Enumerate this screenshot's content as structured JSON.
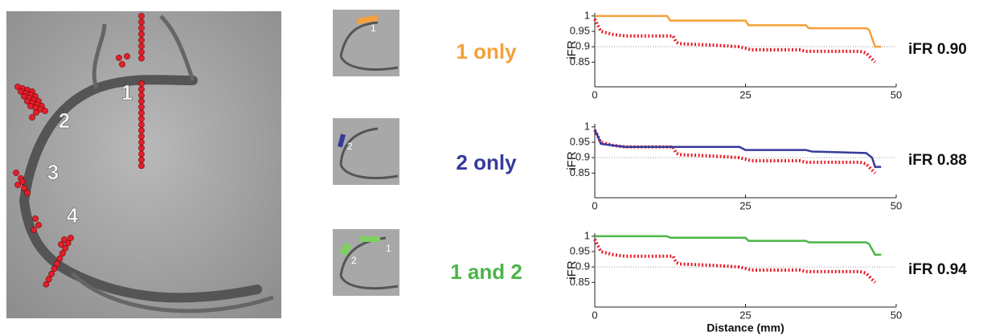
{
  "figure": {
    "main_labels": [
      "1",
      "2",
      "3",
      "4"
    ],
    "thumb_labels": [
      [
        "1"
      ],
      [
        "2"
      ],
      [
        "2",
        "1"
      ]
    ]
  },
  "chart_data": [
    {
      "type": "line",
      "title": "1 only",
      "title_color": "#f5a03a",
      "annotation": "iFR 0.90",
      "ylabel": "iFR",
      "xlim": [
        0,
        50
      ],
      "ylim": [
        0.77,
        1.01
      ],
      "xticks": [
        0,
        25,
        50
      ],
      "yticks": [
        0.85,
        0.9,
        0.95,
        1
      ],
      "reference_line": 0.9,
      "series": [
        {
          "color": "#f5a03a",
          "style": "solid",
          "x": [
            0,
            12,
            12.5,
            25,
            25.5,
            35,
            35.5,
            45,
            45.5,
            46.5,
            47.5
          ],
          "values": [
            1.0,
            1.0,
            0.985,
            0.985,
            0.97,
            0.97,
            0.96,
            0.96,
            0.955,
            0.9,
            0.9
          ]
        },
        {
          "color": "#e8202a",
          "style": "dotted",
          "x": [
            0,
            0.5,
            1,
            2,
            3,
            5,
            13,
            13.5,
            14,
            20,
            24,
            25,
            26,
            34,
            35,
            44,
            45,
            45.5,
            46,
            46.5
          ],
          "values": [
            0.99,
            0.97,
            0.95,
            0.945,
            0.94,
            0.935,
            0.935,
            0.915,
            0.91,
            0.905,
            0.9,
            0.895,
            0.89,
            0.89,
            0.885,
            0.885,
            0.88,
            0.87,
            0.86,
            0.85
          ]
        }
      ]
    },
    {
      "type": "line",
      "title": "2 only",
      "title_color": "#363a9c",
      "annotation": "iFR 0.88",
      "ylabel": "iFR",
      "xlim": [
        0,
        50
      ],
      "ylim": [
        0.77,
        1.01
      ],
      "xticks": [
        0,
        25,
        50
      ],
      "yticks": [
        0.85,
        0.9,
        0.95,
        1
      ],
      "reference_line": 0.9,
      "series": [
        {
          "color": "#363a9c",
          "style": "solid",
          "x": [
            0,
            0.5,
            1,
            3,
            5,
            24,
            25,
            35,
            36,
            45,
            46,
            46.5,
            47.5
          ],
          "values": [
            0.99,
            0.97,
            0.945,
            0.94,
            0.935,
            0.935,
            0.925,
            0.925,
            0.92,
            0.915,
            0.9,
            0.87,
            0.87
          ]
        },
        {
          "color": "#e8202a",
          "style": "dotted",
          "x": [
            0,
            0.5,
            1,
            2,
            3,
            5,
            13,
            13.5,
            14,
            20,
            24,
            25,
            26,
            34,
            35,
            44,
            45,
            45.5,
            46,
            46.5
          ],
          "values": [
            0.99,
            0.97,
            0.95,
            0.945,
            0.94,
            0.935,
            0.935,
            0.915,
            0.91,
            0.905,
            0.9,
            0.895,
            0.89,
            0.89,
            0.885,
            0.885,
            0.88,
            0.87,
            0.86,
            0.85
          ]
        }
      ]
    },
    {
      "type": "line",
      "title": "1 and 2",
      "title_color": "#4bb549",
      "annotation": "iFR 0.94",
      "ylabel": "iFR",
      "xlabel": "Distance (mm)",
      "xlim": [
        0,
        50
      ],
      "ylim": [
        0.77,
        1.01
      ],
      "xticks": [
        0,
        25,
        50
      ],
      "yticks": [
        0.85,
        0.9,
        0.95,
        1
      ],
      "reference_line": 0.9,
      "series": [
        {
          "color": "#4bb549",
          "style": "solid",
          "x": [
            0,
            12,
            12.5,
            25,
            25.5,
            35,
            35.5,
            45,
            45.5,
            46.5,
            47.5
          ],
          "values": [
            1.0,
            1.0,
            0.995,
            0.995,
            0.985,
            0.985,
            0.98,
            0.98,
            0.975,
            0.94,
            0.94
          ]
        },
        {
          "color": "#e8202a",
          "style": "dotted",
          "x": [
            0,
            0.5,
            1,
            2,
            3,
            5,
            13,
            13.5,
            14,
            20,
            24,
            25,
            26,
            34,
            35,
            44,
            45,
            45.5,
            46,
            46.5
          ],
          "values": [
            0.99,
            0.97,
            0.95,
            0.945,
            0.94,
            0.935,
            0.935,
            0.915,
            0.91,
            0.905,
            0.9,
            0.895,
            0.89,
            0.89,
            0.885,
            0.885,
            0.88,
            0.87,
            0.86,
            0.85
          ]
        }
      ]
    }
  ]
}
